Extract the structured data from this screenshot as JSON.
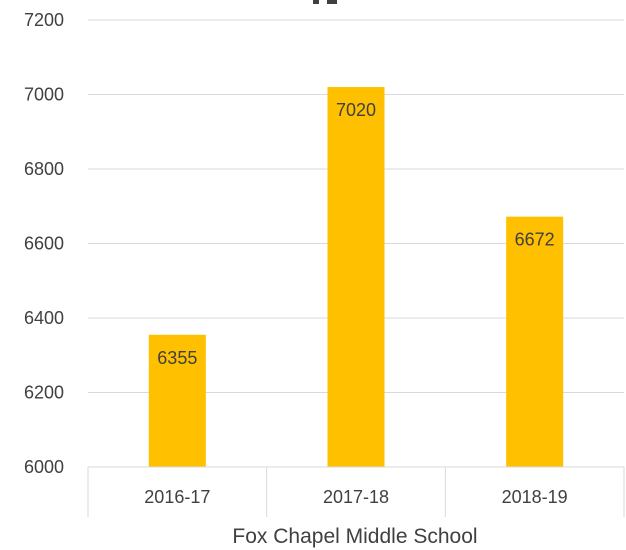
{
  "chart_data": {
    "type": "bar",
    "title": "",
    "xlabel": "Fox Chapel Middle School",
    "ylabel": "",
    "categories": [
      "2016-17",
      "2017-18",
      "2018-19"
    ],
    "values": [
      6355,
      7020,
      6672
    ],
    "data_labels": [
      "6355",
      "7020",
      "6672"
    ],
    "ylim": [
      6000,
      7200
    ],
    "yticks": [
      6000,
      6200,
      6400,
      6600,
      6800,
      7000,
      7200
    ],
    "ytick_labels": [
      "6000",
      "6200",
      "6400",
      "6600",
      "6800",
      "7000",
      "7200"
    ],
    "grid": true,
    "legend": "none",
    "colors": {
      "bar": "#FFC000",
      "grid": "#D9D9D9",
      "text": "#404040"
    }
  }
}
